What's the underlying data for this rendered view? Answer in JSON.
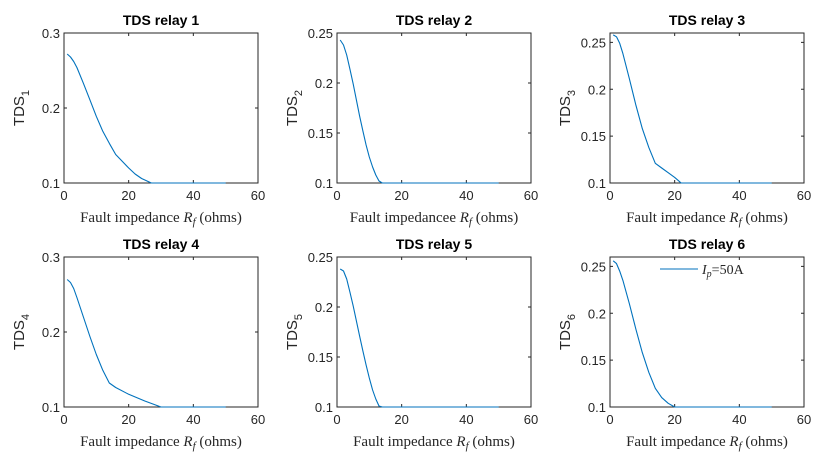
{
  "chart_data": [
    {
      "type": "line",
      "title": "TDS relay 1",
      "ylabel": "TDS",
      "ylabel_sub": "1",
      "xlabel_prefix": "Fault impedance ",
      "xlabel_var": "R",
      "xlabel_var_sub": "f",
      "xlabel_suffix": " (ohms)",
      "xlim": [
        0,
        60
      ],
      "ylim": [
        0.1,
        0.3
      ],
      "xticks": [
        0,
        20,
        40,
        60
      ],
      "yticks": [
        0.1,
        0.2,
        0.3
      ],
      "ytick_labels": [
        "0.1",
        "0.2",
        "0.3"
      ],
      "series": [
        {
          "color": "#0072BD",
          "x": [
            1,
            2,
            3,
            4,
            6,
            8,
            10,
            12,
            14,
            16,
            18,
            20,
            22,
            24,
            26,
            27,
            30,
            40,
            50
          ],
          "y": [
            0.272,
            0.268,
            0.262,
            0.254,
            0.233,
            0.211,
            0.189,
            0.169,
            0.153,
            0.138,
            0.129,
            0.12,
            0.112,
            0.106,
            0.102,
            0.1,
            0.1,
            0.1,
            0.1
          ]
        }
      ]
    },
    {
      "type": "line",
      "title": "TDS relay 2",
      "ylabel": "TDS",
      "ylabel_sub": "2",
      "xlabel_prefix": "Fault impedancee ",
      "xlabel_var": "R",
      "xlabel_var_sub": "f",
      "xlabel_suffix": " (ohms)",
      "xlim": [
        0,
        60
      ],
      "ylim": [
        0.1,
        0.25
      ],
      "xticks": [
        0,
        20,
        40,
        60
      ],
      "yticks": [
        0.1,
        0.15,
        0.2,
        0.25
      ],
      "ytick_labels": [
        "0.1",
        "0.15",
        "0.2",
        "0.25"
      ],
      "series": [
        {
          "color": "#0072BD",
          "x": [
            1,
            2,
            3,
            4,
            5,
            6,
            7,
            8,
            9,
            10,
            11,
            12,
            13,
            14,
            16,
            20,
            30,
            40,
            50
          ],
          "y": [
            0.243,
            0.238,
            0.228,
            0.214,
            0.199,
            0.183,
            0.167,
            0.152,
            0.138,
            0.126,
            0.116,
            0.108,
            0.102,
            0.1,
            0.1,
            0.1,
            0.1,
            0.1,
            0.1
          ]
        }
      ]
    },
    {
      "type": "line",
      "title": "TDS relay 3",
      "ylabel": "TDS",
      "ylabel_sub": "3",
      "xlabel_prefix": "Fault impedance ",
      "xlabel_var": "R",
      "xlabel_var_sub": "f",
      "xlabel_suffix": " (ohms)",
      "xlim": [
        0,
        60
      ],
      "ylim": [
        0.1,
        0.26
      ],
      "xticks": [
        0,
        20,
        40,
        60
      ],
      "yticks": [
        0.1,
        0.15,
        0.2,
        0.25
      ],
      "ytick_labels": [
        "0.1",
        "0.15",
        "0.2",
        "0.25"
      ],
      "series": [
        {
          "color": "#0072BD",
          "x": [
            1,
            2,
            3,
            4,
            6,
            8,
            10,
            12,
            14,
            16,
            18,
            20,
            21,
            22,
            30,
            40,
            50
          ],
          "y": [
            0.258,
            0.256,
            0.249,
            0.238,
            0.211,
            0.183,
            0.158,
            0.138,
            0.121,
            0.116,
            0.111,
            0.106,
            0.103,
            0.1,
            0.1,
            0.1,
            0.1
          ]
        }
      ]
    },
    {
      "type": "line",
      "title": "TDS relay 4",
      "ylabel": "TDS",
      "ylabel_sub": "4",
      "xlabel_prefix": "Fault impedance ",
      "xlabel_var": "R",
      "xlabel_var_sub": "f",
      "xlabel_suffix": " (ohms)",
      "xlim": [
        0,
        60
      ],
      "ylim": [
        0.1,
        0.3
      ],
      "xticks": [
        0,
        20,
        40,
        60
      ],
      "yticks": [
        0.1,
        0.2,
        0.3
      ],
      "ytick_labels": [
        "0.1",
        "0.2",
        "0.3"
      ],
      "series": [
        {
          "color": "#0072BD",
          "x": [
            1,
            2,
            3,
            4,
            6,
            8,
            10,
            12,
            14,
            16,
            20,
            25,
            30,
            40,
            50
          ],
          "y": [
            0.27,
            0.266,
            0.258,
            0.246,
            0.22,
            0.194,
            0.17,
            0.149,
            0.132,
            0.126,
            0.117,
            0.108,
            0.1,
            0.1,
            0.1
          ]
        }
      ]
    },
    {
      "type": "line",
      "title": "TDS relay 5",
      "ylabel": "TDS",
      "ylabel_sub": "5",
      "xlabel_prefix": "Fault impedance ",
      "xlabel_var": "R",
      "xlabel_var_sub": "f",
      "xlabel_suffix": " (ohms)",
      "xlim": [
        0,
        60
      ],
      "ylim": [
        0.1,
        0.25
      ],
      "xticks": [
        0,
        20,
        40,
        60
      ],
      "yticks": [
        0.1,
        0.15,
        0.2,
        0.25
      ],
      "ytick_labels": [
        "0.1",
        "0.15",
        "0.2",
        "0.25"
      ],
      "series": [
        {
          "color": "#0072BD",
          "x": [
            1,
            2,
            3,
            4,
            5,
            6,
            7,
            8,
            9,
            10,
            11,
            12,
            13,
            14,
            20,
            30,
            40,
            50
          ],
          "y": [
            0.238,
            0.236,
            0.228,
            0.215,
            0.201,
            0.186,
            0.171,
            0.156,
            0.142,
            0.129,
            0.117,
            0.108,
            0.101,
            0.1,
            0.1,
            0.1,
            0.1,
            0.1
          ]
        }
      ]
    },
    {
      "type": "line",
      "title": "TDS relay 6",
      "ylabel": "TDS",
      "ylabel_sub": "6",
      "xlabel_prefix": "Fault impedance ",
      "xlabel_var": "R",
      "xlabel_var_sub": "f",
      "xlabel_suffix": " (ohms)",
      "xlim": [
        0,
        60
      ],
      "ylim": [
        0.1,
        0.26
      ],
      "xticks": [
        0,
        20,
        40,
        60
      ],
      "yticks": [
        0.1,
        0.15,
        0.2,
        0.25
      ],
      "ytick_labels": [
        "0.1",
        "0.15",
        "0.2",
        "0.25"
      ],
      "legend": {
        "var": "I",
        "var_sub": "p",
        "text": "=50A",
        "placement": "top-right"
      },
      "series": [
        {
          "color": "#0072BD",
          "x": [
            1,
            2,
            3,
            4,
            6,
            8,
            10,
            12,
            14,
            16,
            18,
            20,
            30,
            40,
            50
          ],
          "y": [
            0.256,
            0.253,
            0.245,
            0.235,
            0.21,
            0.183,
            0.158,
            0.137,
            0.12,
            0.11,
            0.104,
            0.1,
            0.1,
            0.1,
            0.1
          ]
        }
      ]
    }
  ]
}
